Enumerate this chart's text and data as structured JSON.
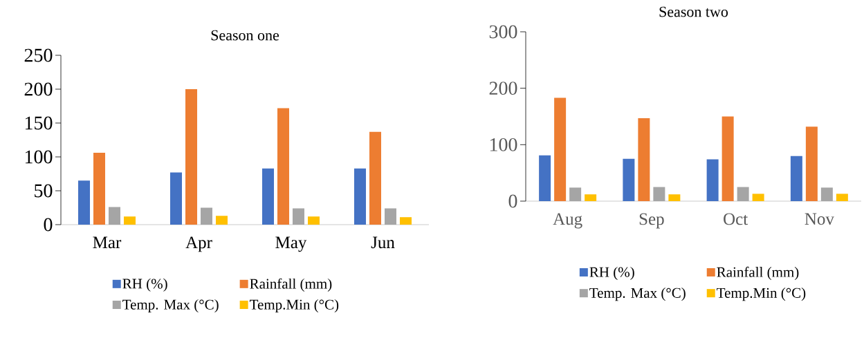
{
  "chart_data": [
    {
      "type": "bar",
      "title": "Season one",
      "categories": [
        "Mar",
        "Apr",
        "May",
        "Jun"
      ],
      "ylim": [
        0,
        250
      ],
      "yticks": [
        0,
        50,
        100,
        150,
        200,
        250
      ],
      "legend": "bottom",
      "grid": false,
      "series": [
        {
          "name": "RH (%)",
          "color": "#4472c4",
          "values": [
            65,
            77,
            83,
            83
          ]
        },
        {
          "name": "Rainfall (mm)",
          "color": "#ed7d31",
          "values": [
            106,
            200,
            172,
            137
          ]
        },
        {
          "name": "Temp. Max (°C)",
          "color": "#a5a5a5",
          "values": [
            26,
            25,
            24,
            24
          ]
        },
        {
          "name": "Temp.Min (°C)",
          "color": "#ffc000",
          "values": [
            12,
            13,
            12,
            11
          ]
        }
      ]
    },
    {
      "type": "bar",
      "title": "Season two",
      "categories": [
        "Aug",
        "Sep",
        "Oct",
        "Nov"
      ],
      "ylim": [
        0,
        300
      ],
      "yticks": [
        0,
        100,
        200,
        300
      ],
      "legend": "bottom",
      "grid": false,
      "series": [
        {
          "name": "RH (%)",
          "color": "#4472c4",
          "values": [
            81,
            75,
            74,
            80
          ]
        },
        {
          "name": "Rainfall (mm)",
          "color": "#ed7d31",
          "values": [
            183,
            147,
            150,
            132
          ]
        },
        {
          "name": "Temp. Max (°C)",
          "color": "#a5a5a5",
          "values": [
            24,
            25,
            25,
            24
          ]
        },
        {
          "name": "Temp.Min (°C)",
          "color": "#ffc000",
          "values": [
            12,
            12,
            13,
            13
          ]
        }
      ]
    }
  ]
}
